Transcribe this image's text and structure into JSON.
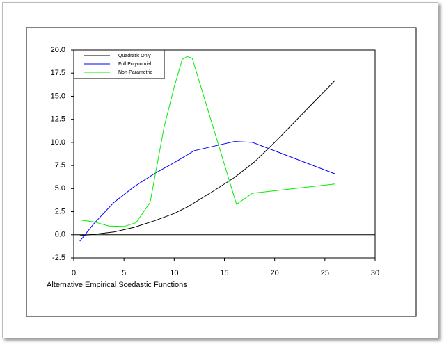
{
  "chart_data": {
    "type": "line",
    "xlabel": "Alternative Empirical Scedastic Functions",
    "xlim": [
      0,
      30
    ],
    "xticks": [
      0,
      5,
      10,
      15,
      20,
      25,
      30
    ],
    "ylim": [
      -2.5,
      20
    ],
    "yticks": [
      -2.5,
      {
        "value": 0,
        "label": "0.0"
      },
      2.5,
      {
        "value": 5,
        "label": "5.0"
      },
      7.5,
      {
        "value": 10,
        "label": "10.0"
      },
      12.5,
      {
        "value": 15,
        "label": "15.0"
      },
      17.5,
      {
        "value": 20,
        "label": "20.0"
      }
    ],
    "legend": "top-left",
    "series": [
      {
        "name": "Quadratic Only",
        "color": "#000000",
        "x": [
          0.6,
          2,
          4,
          6,
          8,
          10,
          11.3,
          14,
          16,
          18,
          20,
          26
        ],
        "values": [
          -0.1,
          0.05,
          0.3,
          0.8,
          1.5,
          2.3,
          3.0,
          4.8,
          6.2,
          7.9,
          10.0,
          16.7
        ]
      },
      {
        "name": "Full Polynomial",
        "color": "#0000ff",
        "x": [
          0.6,
          2,
          4,
          6,
          8,
          10,
          12,
          14,
          16,
          17.8,
          26
        ],
        "values": [
          -0.7,
          1.2,
          3.5,
          5.2,
          6.6,
          7.8,
          9.1,
          9.6,
          10.1,
          10.0,
          6.6
        ]
      },
      {
        "name": "Non-Parametric",
        "color": "#00ee00",
        "x": [
          0.6,
          2,
          3.5,
          5,
          6.2,
          7.6,
          9,
          10,
          10.8,
          11.3,
          11.8,
          16.2,
          17.8,
          26
        ],
        "values": [
          1.6,
          1.4,
          0.95,
          0.9,
          1.3,
          3.5,
          11.7,
          16.0,
          19.0,
          19.3,
          19.1,
          3.3,
          4.5,
          5.5
        ]
      }
    ]
  }
}
